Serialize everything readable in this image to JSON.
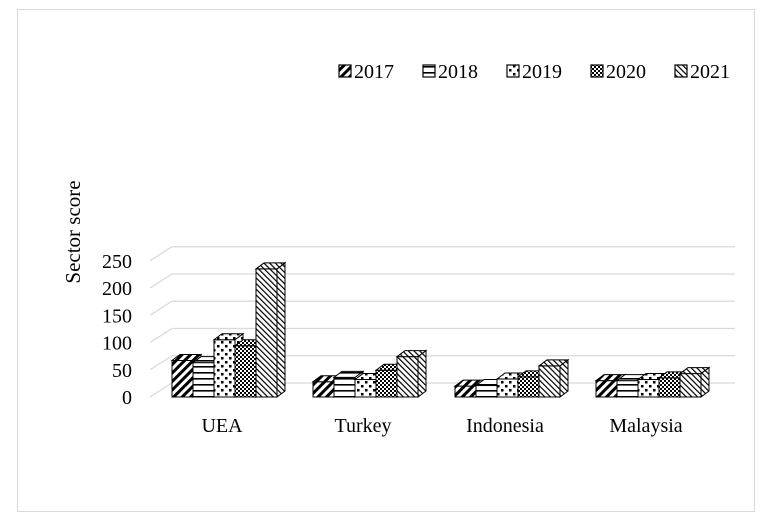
{
  "chart_data": {
    "type": "bar",
    "title": "",
    "xlabel": "",
    "ylabel": "Sector score",
    "ylim": [
      0,
      250
    ],
    "yticks": [
      0,
      50,
      100,
      150,
      200,
      250
    ],
    "categories": [
      "UEA",
      "Turkey",
      "Indonesia",
      "Malaysia"
    ],
    "series": [
      {
        "name": "2017",
        "pattern": "diagonal-thick",
        "values": [
          67,
          28,
          20,
          30
        ]
      },
      {
        "name": "2018",
        "pattern": "horizontal",
        "values": [
          63,
          36,
          21,
          30
        ]
      },
      {
        "name": "2019",
        "pattern": "dots",
        "values": [
          105,
          32,
          33,
          32
        ]
      },
      {
        "name": "2020",
        "pattern": "checker",
        "values": [
          94,
          49,
          37,
          35
        ]
      },
      {
        "name": "2021",
        "pattern": "diagonal-thin",
        "values": [
          235,
          74,
          57,
          43
        ]
      }
    ],
    "legend_position": "top-right",
    "grid": true,
    "style": "3d-clustered-column",
    "colors": {
      "ink": "#000000",
      "grid": "#d9d9d9",
      "face": "#ffffff"
    }
  }
}
